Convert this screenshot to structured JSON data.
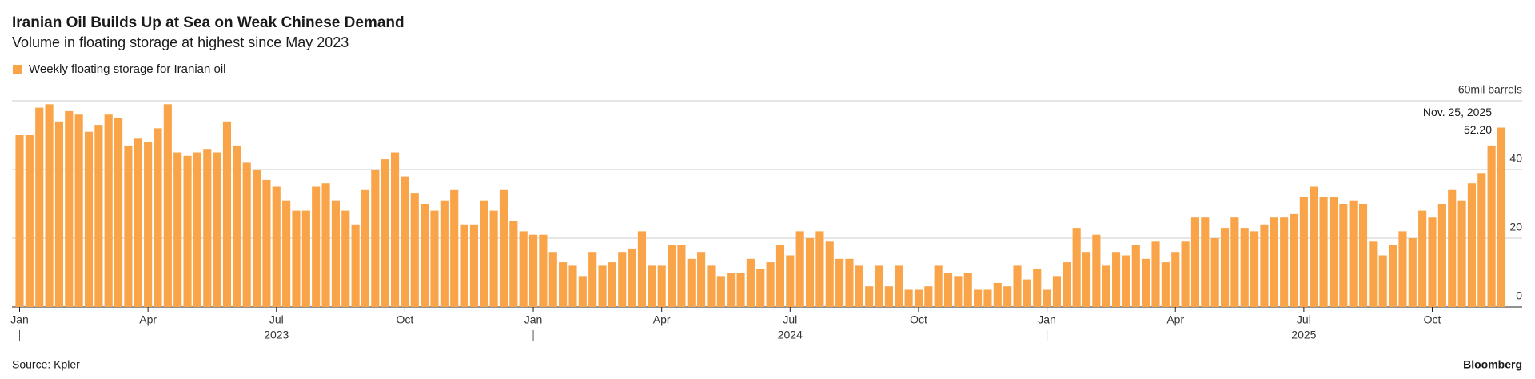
{
  "chart_data": {
    "type": "bar",
    "title": "Iranian Oil Builds Up at Sea on Weak Chinese Demand",
    "subtitle": "Volume in floating storage at highest since May 2023",
    "source": "Source: Kpler",
    "brand": "Bloomberg",
    "series": [
      {
        "name": "Weekly floating storage for Iranian oil",
        "color": "#f9a449",
        "values": [
          50,
          50,
          58,
          59,
          54,
          57,
          56,
          51,
          53,
          56,
          55,
          47,
          49,
          48,
          52,
          59,
          45,
          44,
          45,
          46,
          45,
          54,
          47,
          42,
          40,
          37,
          35,
          31,
          28,
          28,
          35,
          36,
          31,
          28,
          24,
          34,
          40,
          43,
          45,
          38,
          33,
          30,
          28,
          31,
          34,
          24,
          24,
          31,
          28,
          34,
          25,
          22,
          21,
          21,
          16,
          13,
          12,
          9,
          16,
          12,
          13,
          16,
          17,
          22,
          12,
          12,
          18,
          18,
          14,
          16,
          12,
          9,
          10,
          10,
          14,
          11,
          13,
          18,
          15,
          22,
          20,
          22,
          19,
          14,
          14,
          12,
          6,
          12,
          6,
          12,
          5,
          5,
          6,
          12,
          10,
          9,
          10,
          5,
          5,
          7,
          6,
          12,
          8,
          11,
          5,
          9,
          13,
          23,
          16,
          21,
          12,
          16,
          15,
          18,
          14,
          19,
          13,
          16,
          19,
          26,
          26,
          20,
          23,
          26,
          23,
          22,
          24,
          26,
          26,
          27,
          32,
          35,
          32,
          32,
          30,
          31,
          30,
          19,
          15,
          18,
          22,
          20,
          28,
          26,
          30,
          34,
          31,
          36,
          39,
          47,
          52.2
        ]
      }
    ],
    "ylim": [
      0,
      60
    ],
    "yticks": [
      0,
      20,
      40,
      {
        "value": 60,
        "label": "60mil barrels"
      }
    ],
    "xticks": [
      {
        "value": 0,
        "label": "Jan"
      },
      {
        "value": 13,
        "label": "Apr"
      },
      {
        "value": 26,
        "label": "Jul"
      },
      {
        "value": 39,
        "label": "Oct"
      },
      {
        "value": 52,
        "label": "Jan"
      },
      {
        "value": 65,
        "label": "Apr"
      },
      {
        "value": 78,
        "label": "Jul"
      },
      {
        "value": 91,
        "label": "Oct"
      },
      {
        "value": 104,
        "label": "Jan"
      },
      {
        "value": 117,
        "label": "Apr"
      },
      {
        "value": 130,
        "label": "Jul"
      },
      {
        "value": 143,
        "label": "Oct"
      }
    ],
    "years": [
      {
        "value": 26,
        "label": "2023"
      },
      {
        "value": 78,
        "label": "2024"
      },
      {
        "value": 130,
        "label": "2025"
      }
    ],
    "annotation": {
      "label": "Nov. 25, 2025",
      "value": 52.2,
      "value_label": "52.20"
    },
    "grid": true
  }
}
